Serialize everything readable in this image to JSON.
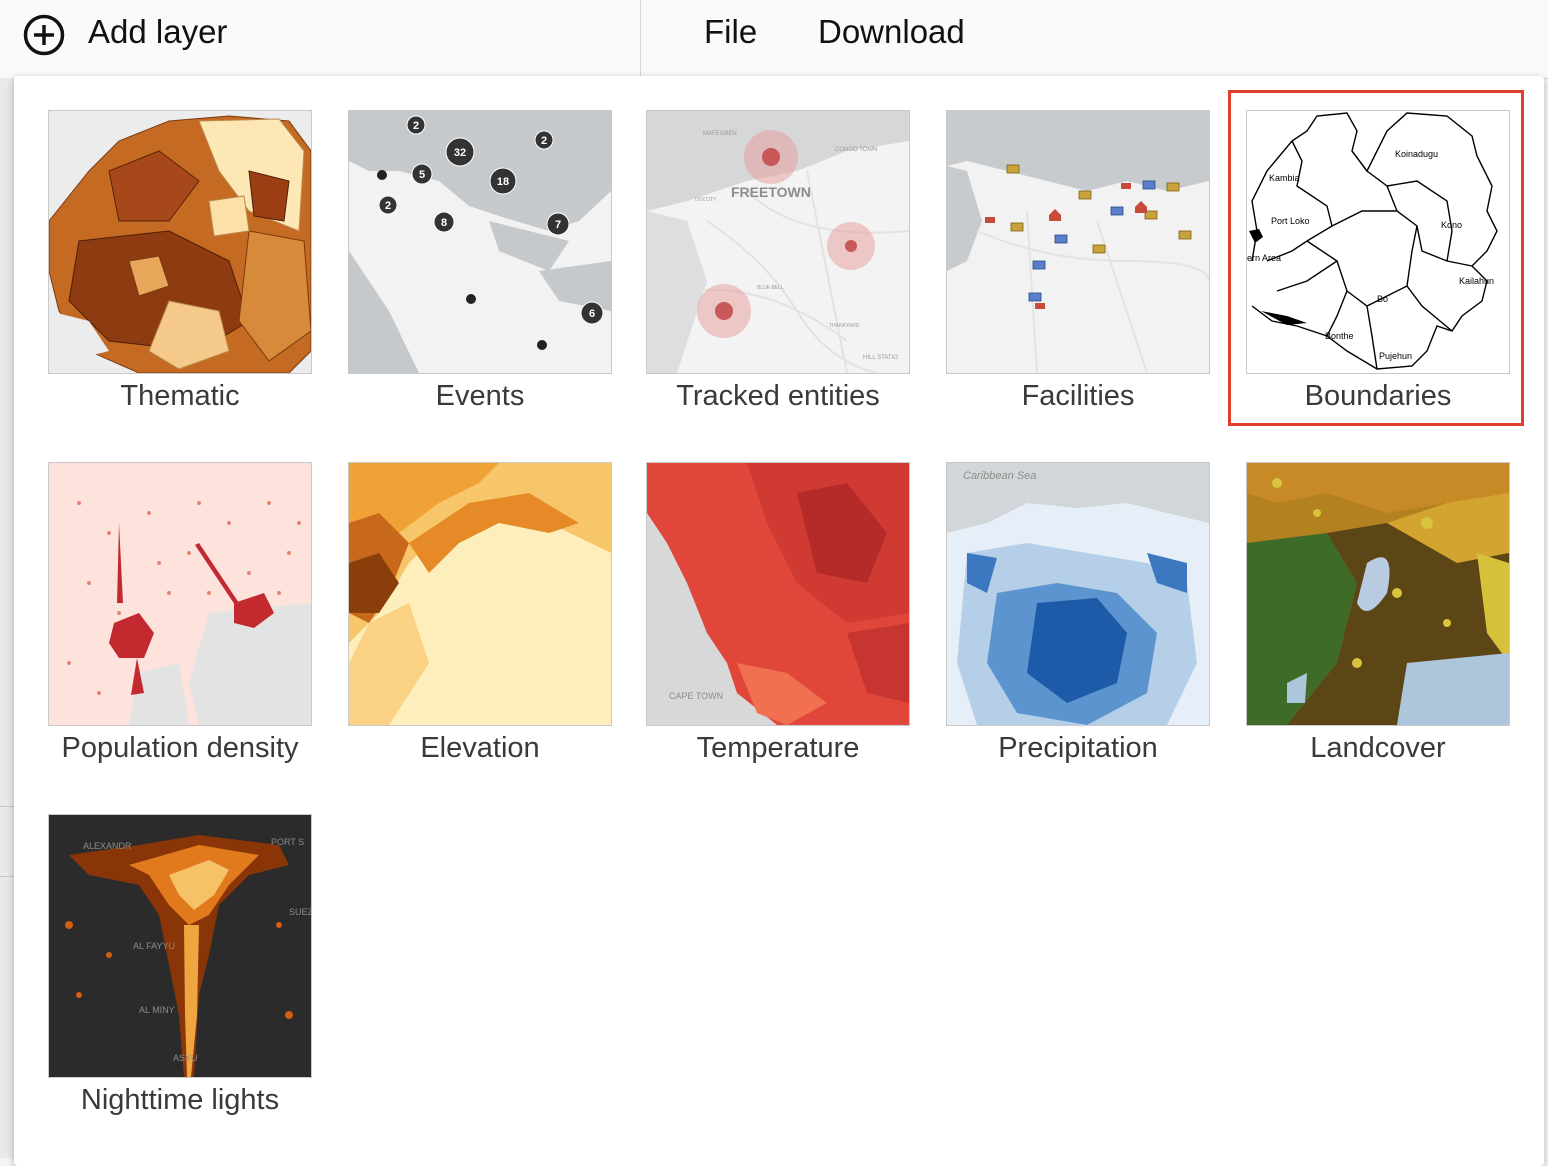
{
  "toolbar": {
    "add_layer_label": "Add layer",
    "add_icon": "add-circle-icon",
    "menu": [
      "File",
      "Download"
    ]
  },
  "layers": [
    {
      "label": "Thematic",
      "thumbnail": "choropleth-map"
    },
    {
      "label": "Events",
      "thumbnail": "clustered-events-map"
    },
    {
      "label": "Tracked entities",
      "thumbnail": "tracked-entities-map"
    },
    {
      "label": "Facilities",
      "thumbnail": "facilities-map"
    },
    {
      "label": "Boundaries",
      "thumbnail": "boundaries-map",
      "selected": true
    },
    {
      "label": "Population density",
      "thumbnail": "population-density-map"
    },
    {
      "label": "Elevation",
      "thumbnail": "elevation-map"
    },
    {
      "label": "Temperature",
      "thumbnail": "temperature-map"
    },
    {
      "label": "Precipitation",
      "thumbnail": "precipitation-map"
    },
    {
      "label": "Landcover",
      "thumbnail": "landcover-map"
    },
    {
      "label": "Nighttime lights",
      "thumbnail": "nighttime-lights-map"
    }
  ],
  "thumbnails": {
    "events_cluster_counts": [
      "2",
      "32",
      "2",
      "5",
      "18",
      "2",
      "8",
      "7",
      "6"
    ],
    "tracked_place_labels": [
      "MAFEGBEN",
      "CONGO TOWN",
      "FREETOWN",
      "DOCOTY",
      "BLUE BELL",
      "THANKYARD",
      "HILL STATIO"
    ],
    "boundary_names": [
      "Koinadugu",
      "Kambia",
      "Port Loko",
      "Kono",
      "ern Area",
      "Kailahun",
      "Bo",
      "Bonthe",
      "Pujehun"
    ],
    "temperature_place_label": "CAPE TOWN",
    "precipitation_sea_label": "Caribbean Sea",
    "nightlights_place_labels": [
      "ALEXANDR",
      "PORT S",
      "SUEZ",
      "AL FAYYU",
      "AL MINY",
      "ASYU"
    ]
  },
  "highlight_color": "#e0412e"
}
